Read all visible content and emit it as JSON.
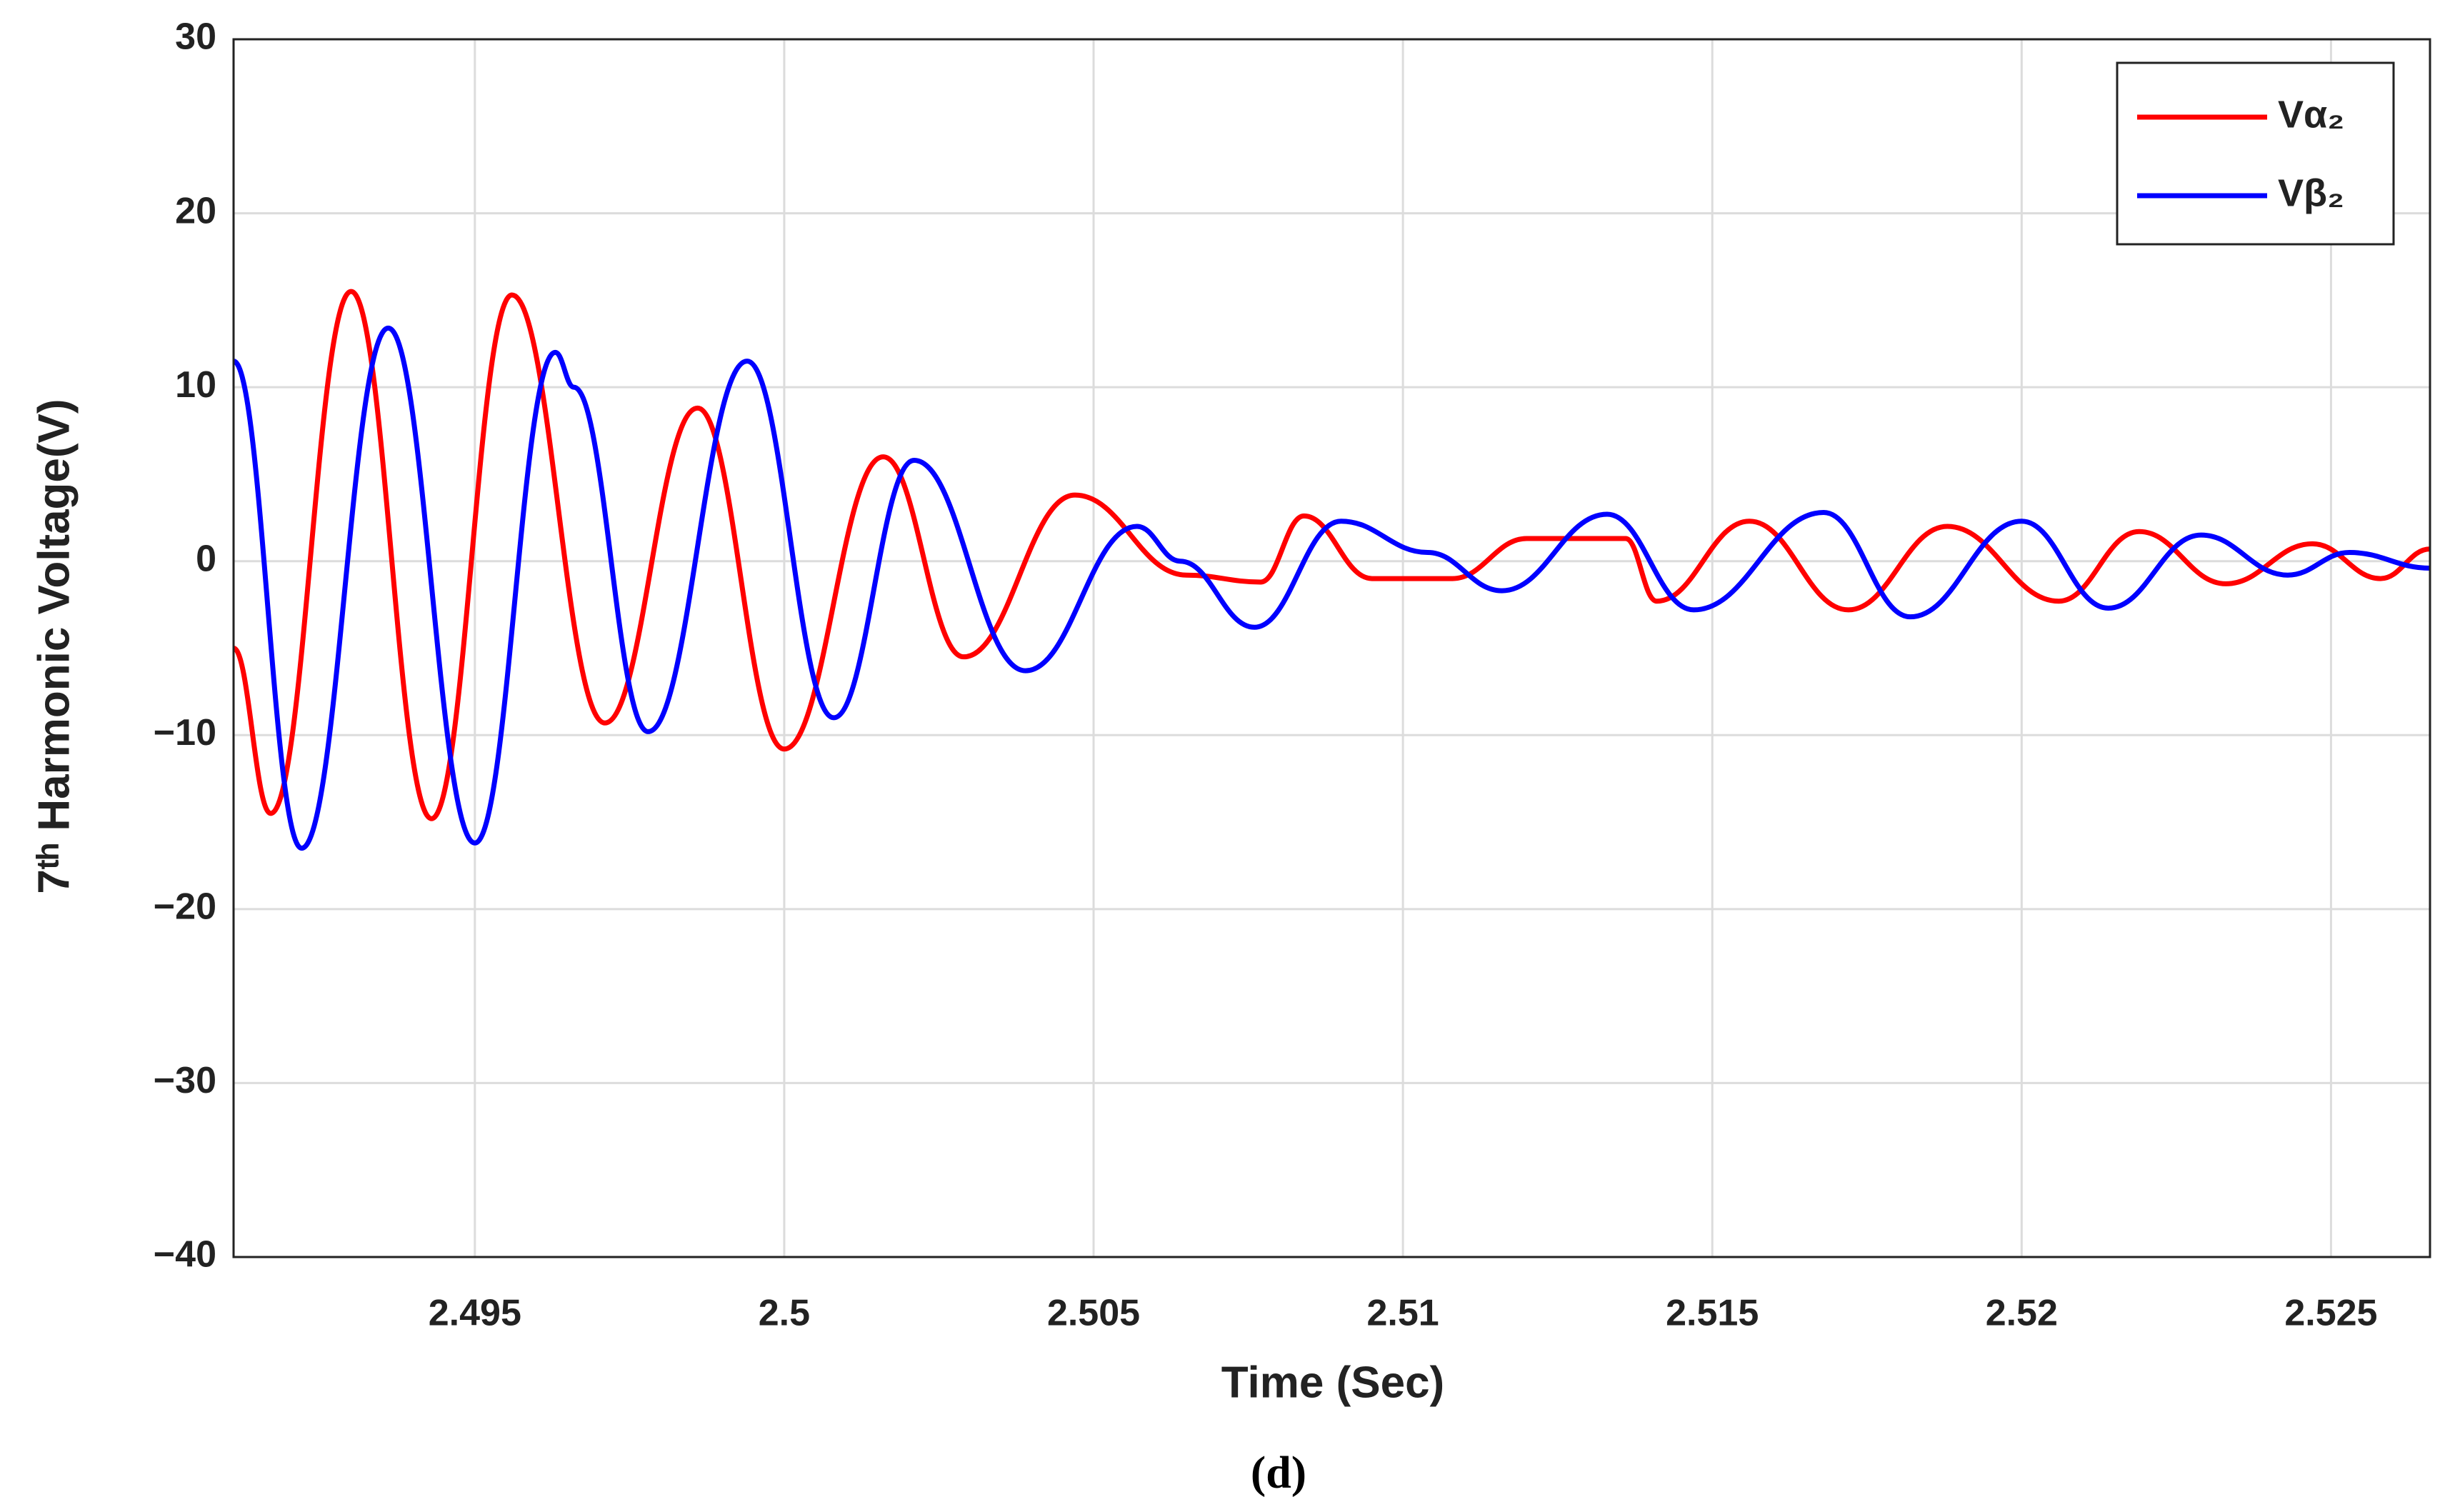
{
  "chart_data": {
    "type": "line",
    "xlabel": "Time (Sec)",
    "ylabel": "7ᵗʰ Harmonic Voltage(V)",
    "caption": "(d)",
    "xlim": [
      2.4911,
      2.5266
    ],
    "ylim": [
      -40,
      30
    ],
    "xticks": [
      2.495,
      2.5,
      2.505,
      2.51,
      2.515,
      2.52,
      2.525
    ],
    "yticks": [
      {
        "value": -40,
        "label": "−40"
      },
      {
        "value": -30,
        "label": "−30"
      },
      {
        "value": -20,
        "label": "−20"
      },
      {
        "value": -10,
        "label": "−10"
      },
      0,
      10,
      20,
      30
    ],
    "grid": true,
    "legend": "upper right",
    "series": [
      {
        "name": "Vα₂",
        "color": "#ff0000",
        "x": [
          2.4911,
          2.4917,
          2.493,
          2.4943,
          2.4956,
          2.4971,
          2.4986,
          2.5,
          2.5016,
          2.5029,
          2.5047,
          2.5065,
          2.5077,
          2.5084,
          2.5095,
          2.5108,
          2.512,
          2.5136,
          2.5141,
          2.5156,
          2.5172,
          2.5188,
          2.5206,
          2.5219,
          2.5233,
          2.5247,
          2.5258,
          2.5266
        ],
        "values": [
          -5,
          -14.5,
          15.5,
          -14.8,
          15.3,
          -9.3,
          8.8,
          -10.8,
          6,
          -5.5,
          3.8,
          -0.8,
          -1.2,
          2.6,
          -1,
          -1,
          1.3,
          1.3,
          -2.3,
          2.3,
          -2.8,
          2,
          -2.3,
          1.7,
          -1.3,
          1,
          -1,
          0.7
        ]
      },
      {
        "name": "Vβ₂",
        "color": "#0000ff",
        "x": [
          2.4911,
          2.4922,
          2.4936,
          2.495,
          2.4963,
          2.4966,
          2.4978,
          2.4994,
          2.5008,
          2.5021,
          2.5039,
          2.5057,
          2.5064,
          2.5076,
          2.509,
          2.5104,
          2.5116,
          2.5133,
          2.5147,
          2.5168,
          2.5182,
          2.52,
          2.5214,
          2.5229,
          2.5243,
          2.5253,
          2.5266
        ],
        "values": [
          11.5,
          -16.5,
          13.4,
          -16.2,
          12,
          10,
          -9.8,
          11.5,
          -9,
          5.8,
          -6.3,
          2,
          0,
          -3.8,
          2.3,
          0.5,
          -1.7,
          2.7,
          -2.8,
          2.8,
          -3.2,
          2.3,
          -2.7,
          1.5,
          -0.8,
          0.5,
          -0.4
        ]
      }
    ]
  }
}
